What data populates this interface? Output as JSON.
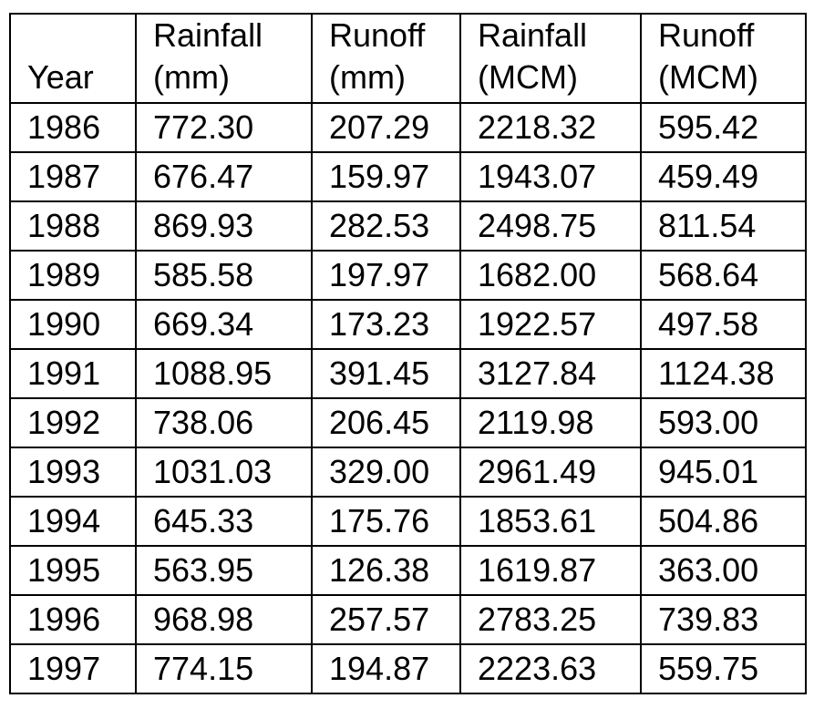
{
  "table": {
    "headers": [
      {
        "line1": "",
        "line2": "Year"
      },
      {
        "line1": "Rainfall",
        "line2": "(mm)"
      },
      {
        "line1": "Runoff",
        "line2": "(mm)"
      },
      {
        "line1": "Rainfall",
        "line2": "(MCM)"
      },
      {
        "line1": "Runoff",
        "line2": "(MCM)"
      }
    ],
    "rows": [
      [
        "1986",
        "772.30",
        "207.29",
        "2218.32",
        "595.42"
      ],
      [
        "1987",
        "676.47",
        "159.97",
        "1943.07",
        "459.49"
      ],
      [
        "1988",
        "869.93",
        "282.53",
        "2498.75",
        "811.54"
      ],
      [
        "1989",
        "585.58",
        "197.97",
        "1682.00",
        "568.64"
      ],
      [
        "1990",
        "669.34",
        "173.23",
        "1922.57",
        "497.58"
      ],
      [
        "1991",
        "1088.95",
        "391.45",
        "3127.84",
        "1124.38"
      ],
      [
        "1992",
        "738.06",
        "206.45",
        "2119.98",
        "593.00"
      ],
      [
        "1993",
        "1031.03",
        "329.00",
        "2961.49",
        "945.01"
      ],
      [
        "1994",
        "645.33",
        "175.76",
        "1853.61",
        "504.86"
      ],
      [
        "1995",
        "563.95",
        "126.38",
        "1619.87",
        "363.00"
      ],
      [
        "1996",
        "968.98",
        "257.57",
        "2783.25",
        "739.83"
      ],
      [
        "1997",
        "774.15",
        "194.87",
        "2223.63",
        "559.75"
      ]
    ]
  }
}
